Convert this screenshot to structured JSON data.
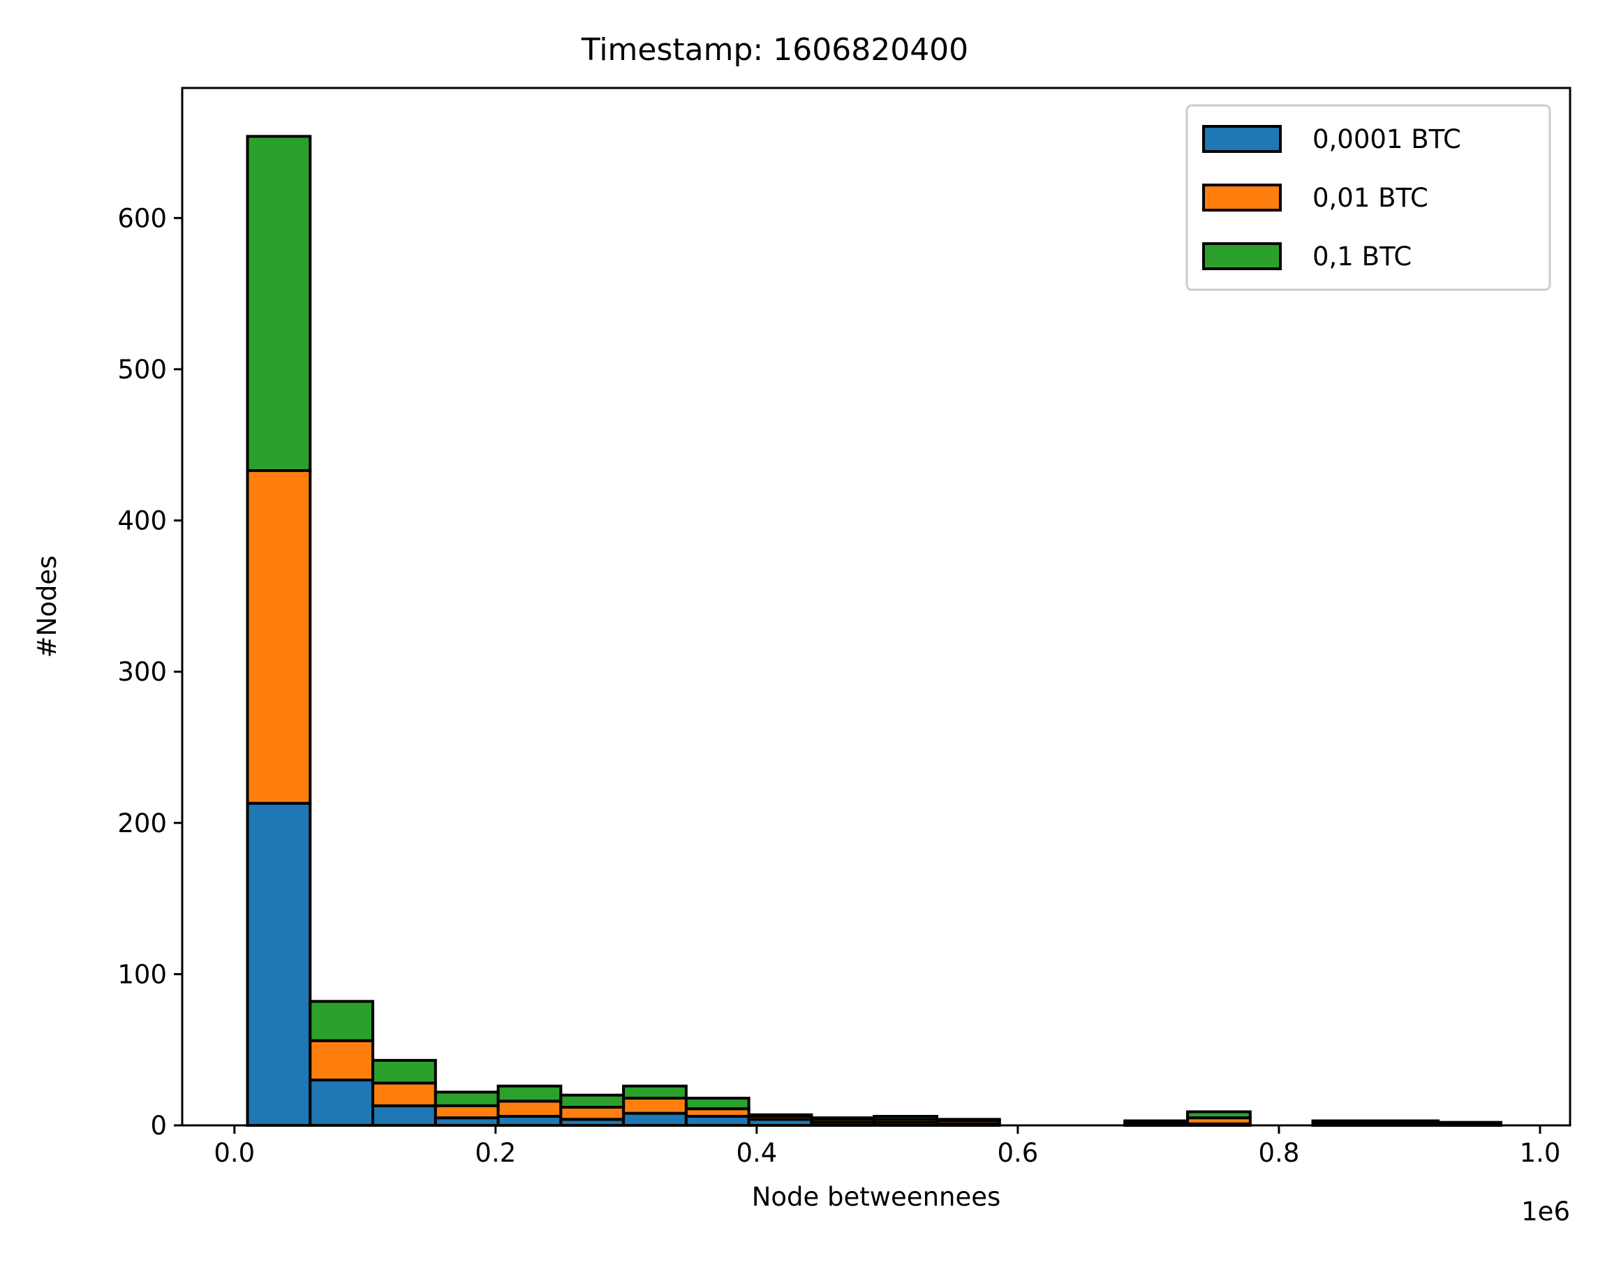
{
  "chart_data": {
    "type": "bar",
    "stacked": true,
    "title": "Timestamp: 1606820400",
    "xlabel": "Node betweennees",
    "ylabel": "#Nodes",
    "x_offset_text": "1e6",
    "xlim": [
      -0.04,
      1.023
    ],
    "ylim": [
      0,
      686
    ],
    "xticks": [
      0.0,
      0.2,
      0.4,
      0.6,
      0.8,
      1.0
    ],
    "xtick_labels": [
      "0.0",
      "0.2",
      "0.4",
      "0.6",
      "0.8",
      "1.0"
    ],
    "yticks": [
      0,
      100,
      200,
      300,
      400,
      500,
      600
    ],
    "ytick_labels": [
      "0",
      "100",
      "200",
      "300",
      "400",
      "500",
      "600"
    ],
    "bin_edges": [
      0.01,
      0.058,
      0.106,
      0.154,
      0.202,
      0.25,
      0.298,
      0.346,
      0.394,
      0.442,
      0.49,
      0.538,
      0.586,
      0.634,
      0.682,
      0.73,
      0.778,
      0.826,
      0.874,
      0.922,
      0.97
    ],
    "series": [
      {
        "name": "0,0001 BTC",
        "color": "#1f77b4",
        "values": [
          213,
          30,
          13,
          5,
          6,
          4,
          8,
          6,
          4,
          2,
          2,
          1,
          0,
          0,
          1,
          1,
          0,
          1,
          1,
          0
        ]
      },
      {
        "name": "0,01 BTC",
        "color": "#ff7f0e",
        "values": [
          220,
          26,
          15,
          8,
          10,
          8,
          10,
          5,
          2,
          2,
          2,
          2,
          0,
          0,
          1,
          4,
          0,
          1,
          1,
          1
        ]
      },
      {
        "name": "0,1 BTC",
        "color": "#2ca02c",
        "values": [
          221,
          26,
          15,
          9,
          10,
          8,
          8,
          7,
          1,
          1,
          2,
          1,
          0,
          0,
          1,
          4,
          0,
          1,
          1,
          1
        ]
      }
    ],
    "legend_position": "top-right",
    "grid": false
  }
}
